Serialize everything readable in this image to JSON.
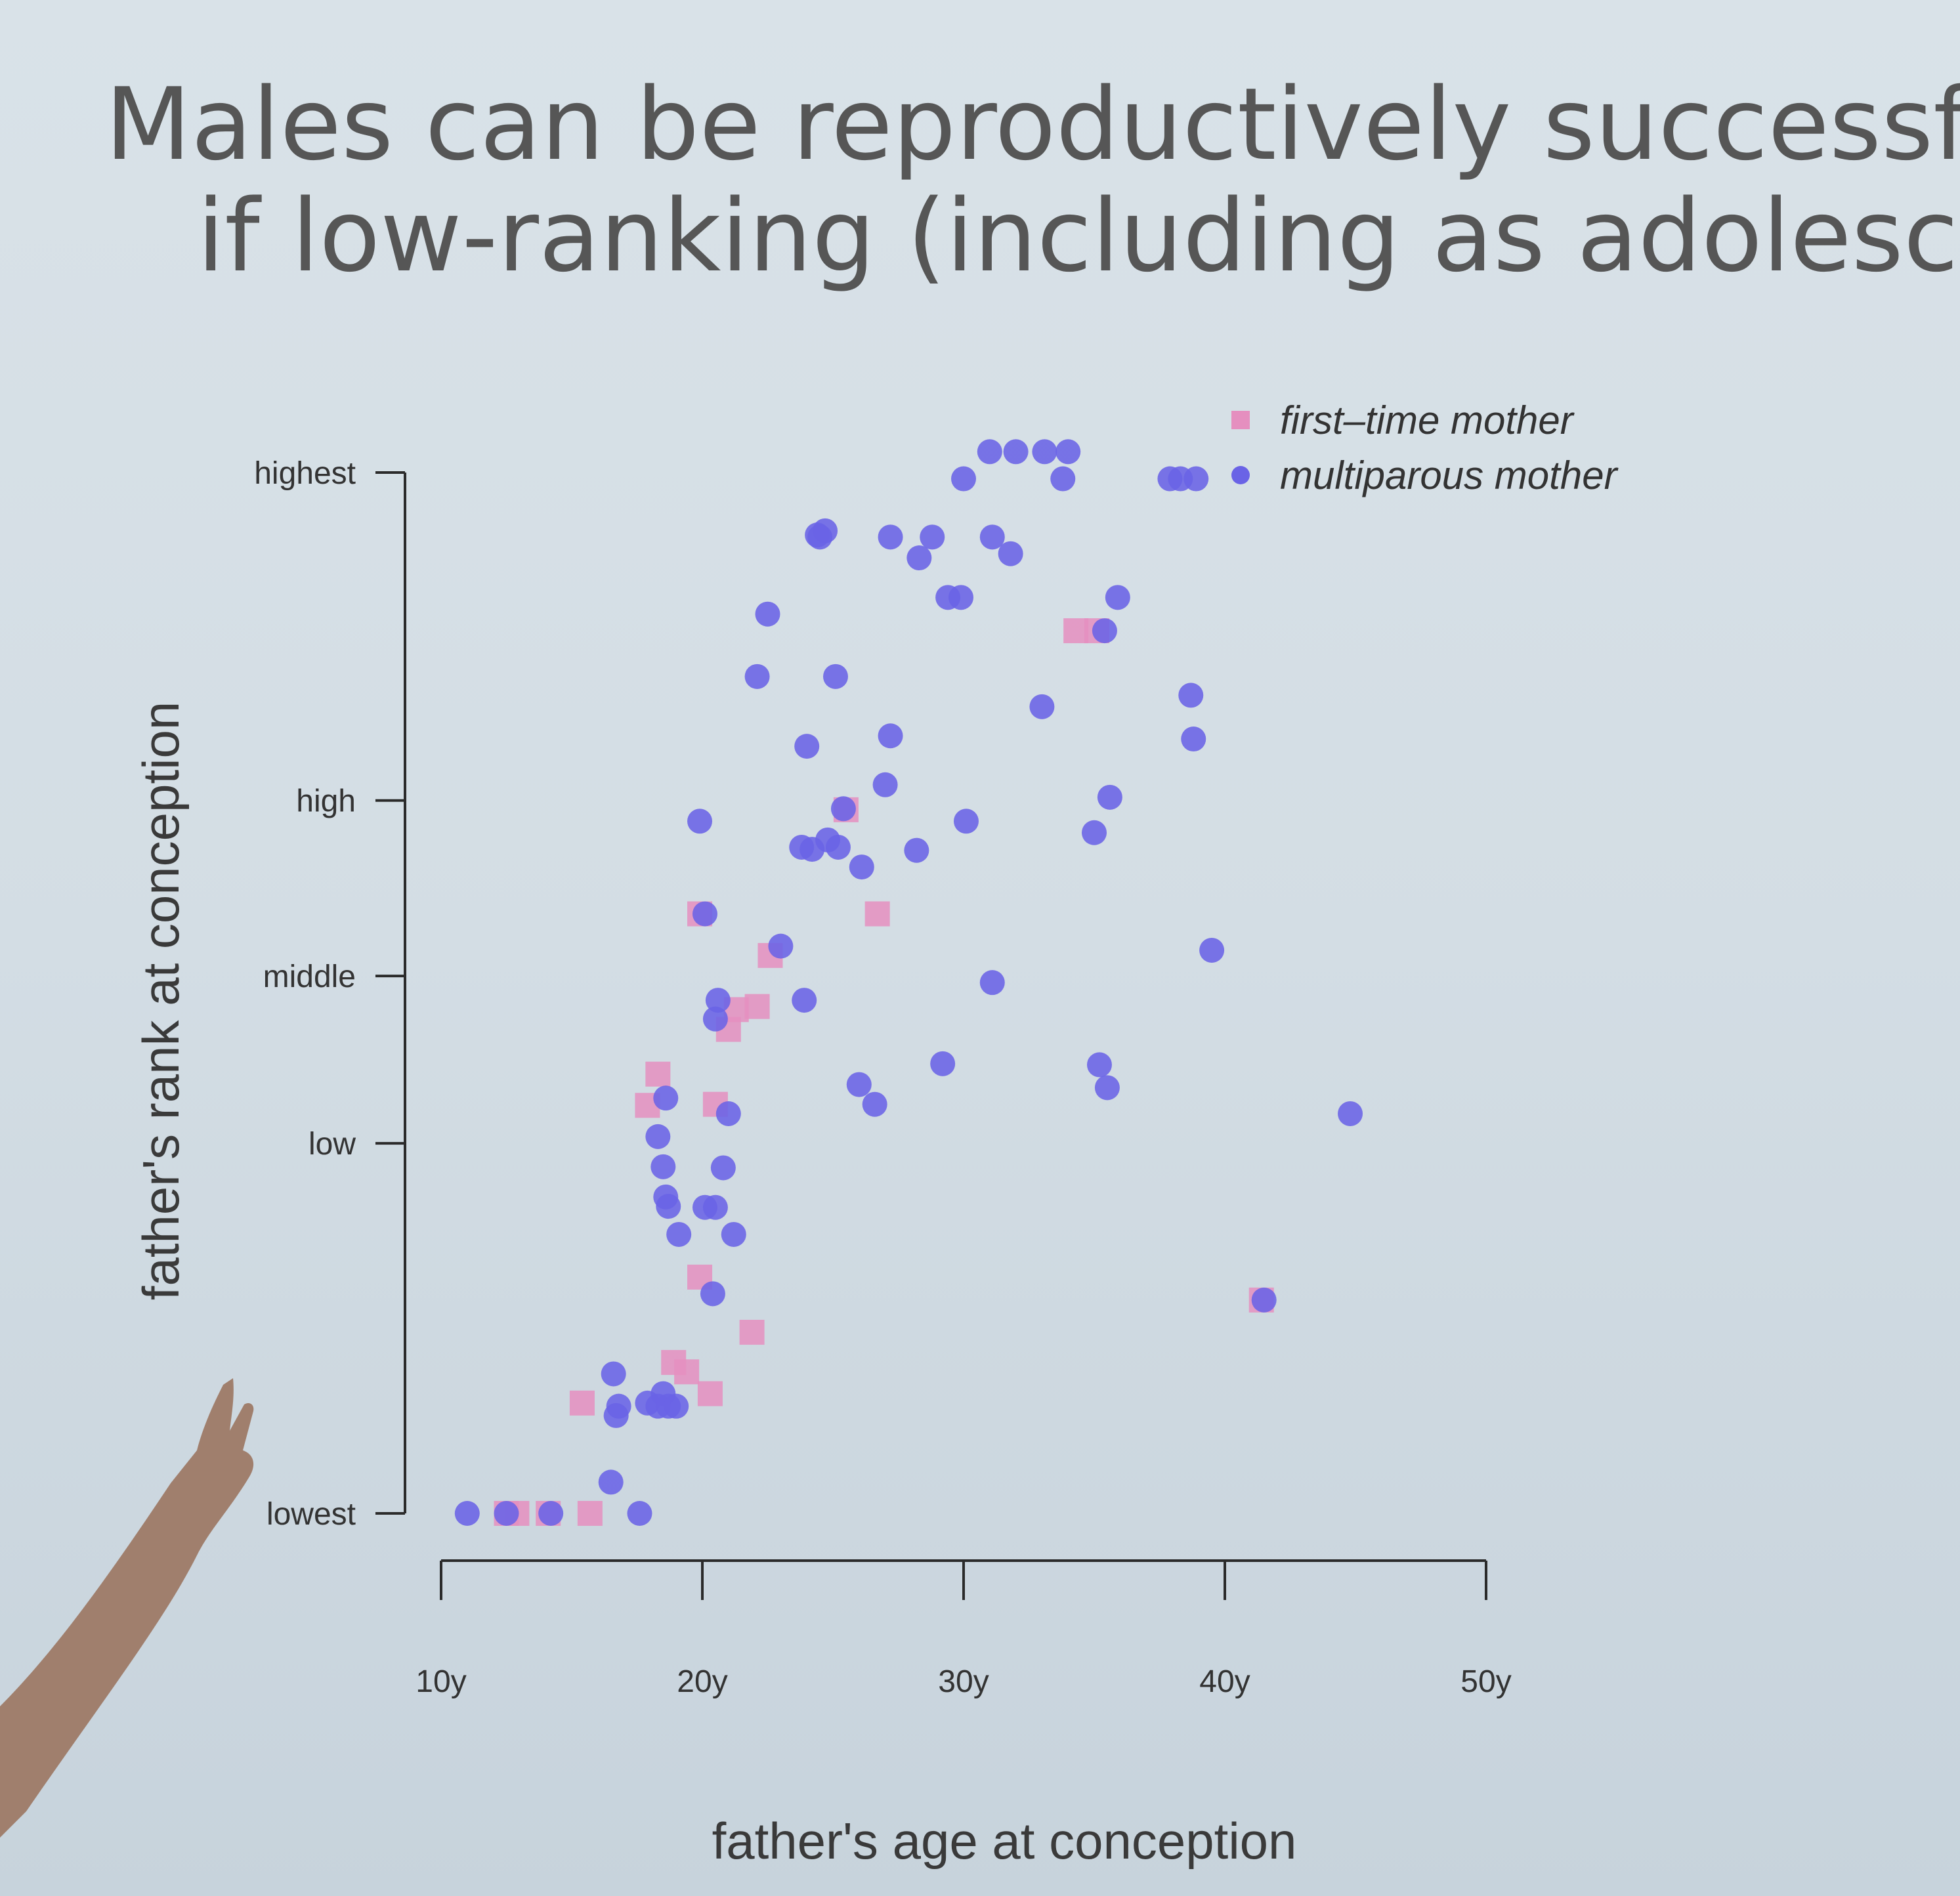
{
  "slide": {
    "title_line1": "Males can be reproductively successful",
    "title_line2": "if low-ranking (including as adolescer"
  },
  "colors": {
    "first_time_mother": "#e58fbf",
    "multiparous_mother": "#6a63e6",
    "axis": "#2b2b2b"
  },
  "chart_data": {
    "type": "scatter",
    "xlabel": "father's age at conception",
    "ylabel": "father's rank at conception",
    "xlim": [
      10,
      50
    ],
    "ylim": [
      0,
      1
    ],
    "x_ticks": [
      {
        "value": 10,
        "label": "10y"
      },
      {
        "value": 20,
        "label": "20y"
      },
      {
        "value": 30,
        "label": "30y"
      },
      {
        "value": 40,
        "label": "40y"
      },
      {
        "value": 50,
        "label": "50y"
      }
    ],
    "y_ticks": [
      {
        "value": 0,
        "label": "lowest"
      },
      {
        "value": 0.3555,
        "label": "low"
      },
      {
        "value": 0.5163,
        "label": "middle"
      },
      {
        "value": 0.6849,
        "label": "high"
      },
      {
        "value": 1,
        "label": "highest"
      }
    ],
    "legend": {
      "position": "top-right",
      "entries": [
        {
          "label": "first–time mother",
          "marker": "square"
        },
        {
          "label": "multiparous mother",
          "marker": "circle"
        }
      ]
    },
    "grid": false,
    "series": [
      {
        "name": "first–time mother",
        "marker": "square",
        "points": [
          [
            12.5,
            0.0
          ],
          [
            12.9,
            0.0
          ],
          [
            14.1,
            0.0
          ],
          [
            15.7,
            0.0
          ],
          [
            15.4,
            0.106
          ],
          [
            18.9,
            0.145
          ],
          [
            19.4,
            0.136
          ],
          [
            20.3,
            0.115
          ],
          [
            21.9,
            0.174
          ],
          [
            19.9,
            0.227
          ],
          [
            17.9,
            0.392
          ],
          [
            18.3,
            0.422
          ],
          [
            20.5,
            0.393
          ],
          [
            21.0,
            0.465
          ],
          [
            21.3,
            0.484
          ],
          [
            22.1,
            0.487
          ],
          [
            22.6,
            0.536
          ],
          [
            19.9,
            0.576
          ],
          [
            25.5,
            0.676
          ],
          [
            26.7,
            0.576
          ],
          [
            34.3,
            0.848
          ],
          [
            35.1,
            0.848
          ],
          [
            41.4,
            0.205
          ]
        ]
      },
      {
        "name": "multiparous mother",
        "marker": "circle",
        "points": [
          [
            11.0,
            0.0
          ],
          [
            12.5,
            0.0
          ],
          [
            14.2,
            0.0
          ],
          [
            17.6,
            0.0
          ],
          [
            16.5,
            0.03
          ],
          [
            16.6,
            0.134
          ],
          [
            16.8,
            0.103
          ],
          [
            16.7,
            0.094
          ],
          [
            17.9,
            0.106
          ],
          [
            18.3,
            0.103
          ],
          [
            18.5,
            0.115
          ],
          [
            18.7,
            0.103
          ],
          [
            19.0,
            0.103
          ],
          [
            18.6,
            0.399
          ],
          [
            18.3,
            0.362
          ],
          [
            18.5,
            0.333
          ],
          [
            18.6,
            0.304
          ],
          [
            18.7,
            0.295
          ],
          [
            19.1,
            0.268
          ],
          [
            20.1,
            0.294
          ],
          [
            20.5,
            0.294
          ],
          [
            20.8,
            0.332
          ],
          [
            21.2,
            0.268
          ],
          [
            20.4,
            0.211
          ],
          [
            21.0,
            0.384
          ],
          [
            20.5,
            0.475
          ],
          [
            20.6,
            0.493
          ],
          [
            20.1,
            0.576
          ],
          [
            19.9,
            0.665
          ],
          [
            23.0,
            0.545
          ],
          [
            23.9,
            0.493
          ],
          [
            26.0,
            0.412
          ],
          [
            26.6,
            0.393
          ],
          [
            23.8,
            0.64
          ],
          [
            24.2,
            0.638
          ],
          [
            24.8,
            0.647
          ],
          [
            25.2,
            0.64
          ],
          [
            26.1,
            0.621
          ],
          [
            27.0,
            0.7
          ],
          [
            28.2,
            0.637
          ],
          [
            25.4,
            0.677
          ],
          [
            22.1,
            0.804
          ],
          [
            25.1,
            0.804
          ],
          [
            24.0,
            0.737
          ],
          [
            27.2,
            0.747
          ],
          [
            22.5,
            0.864
          ],
          [
            24.4,
            0.94
          ],
          [
            24.7,
            0.944
          ],
          [
            24.5,
            0.938
          ],
          [
            27.2,
            0.938
          ],
          [
            28.3,
            0.918
          ],
          [
            28.8,
            0.938
          ],
          [
            29.4,
            0.88
          ],
          [
            29.9,
            0.88
          ],
          [
            31.1,
            0.938
          ],
          [
            31.8,
            0.922
          ],
          [
            30.0,
            0.994
          ],
          [
            31.0,
            1.02
          ],
          [
            32.0,
            1.02
          ],
          [
            33.1,
            1.02
          ],
          [
            34.0,
            1.02
          ],
          [
            33.8,
            0.994
          ],
          [
            35.4,
            0.848
          ],
          [
            35.9,
            0.88
          ],
          [
            33.0,
            0.775
          ],
          [
            29.2,
            0.432
          ],
          [
            30.1,
            0.665
          ],
          [
            31.1,
            0.51
          ],
          [
            35.0,
            0.654
          ],
          [
            35.6,
            0.688
          ],
          [
            35.2,
            0.431
          ],
          [
            35.5,
            0.409
          ],
          [
            37.9,
            0.994
          ],
          [
            38.3,
            0.994
          ],
          [
            38.9,
            0.994
          ],
          [
            38.7,
            0.786
          ],
          [
            38.8,
            0.744
          ],
          [
            39.5,
            0.541
          ],
          [
            41.5,
            0.205
          ],
          [
            44.8,
            0.384
          ]
        ]
      }
    ]
  }
}
